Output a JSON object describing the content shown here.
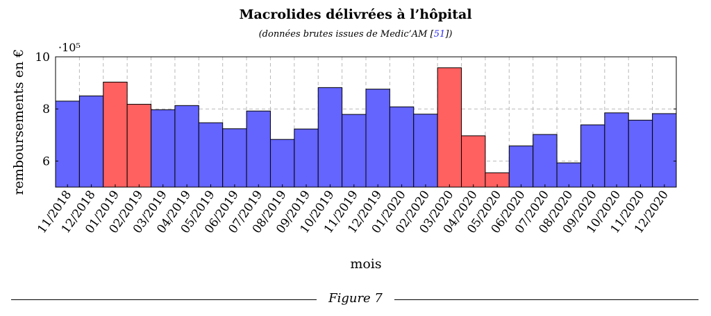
{
  "chart_data": {
    "type": "bar",
    "title": "Macrolides délivrées à l’hôpital",
    "subtitle": "(données brutes issues de Medic’AM [51])",
    "xlabel": "mois",
    "ylabel": "remboursements en €",
    "y_multiplier": "·10⁵",
    "ylim": [
      5,
      10
    ],
    "yticks": [
      6,
      8,
      10
    ],
    "grid": true,
    "categories": [
      "11/2018",
      "12/2018",
      "01/2019",
      "02/2019",
      "03/2019",
      "04/2019",
      "05/2019",
      "06/2019",
      "07/2019",
      "08/2019",
      "09/2019",
      "10/2019",
      "11/2019",
      "12/2019",
      "01/2020",
      "02/2020",
      "03/2020",
      "04/2020",
      "05/2020",
      "06/2020",
      "07/2020",
      "08/2020",
      "09/2020",
      "10/2020",
      "11/2020",
      "12/2020"
    ],
    "values": [
      8.3,
      8.5,
      9.03,
      8.18,
      7.97,
      8.13,
      7.47,
      7.24,
      7.92,
      6.83,
      7.23,
      8.82,
      7.79,
      8.76,
      8.08,
      7.8,
      9.58,
      6.97,
      5.55,
      6.58,
      7.02,
      5.93,
      7.39,
      7.85,
      7.57,
      7.82
    ],
    "highlighted": [
      2,
      3,
      16,
      17,
      18
    ],
    "colors": {
      "normal": "#6464ff",
      "highlight": "#ff6060"
    }
  },
  "figure": {
    "caption": "Figure 7"
  }
}
